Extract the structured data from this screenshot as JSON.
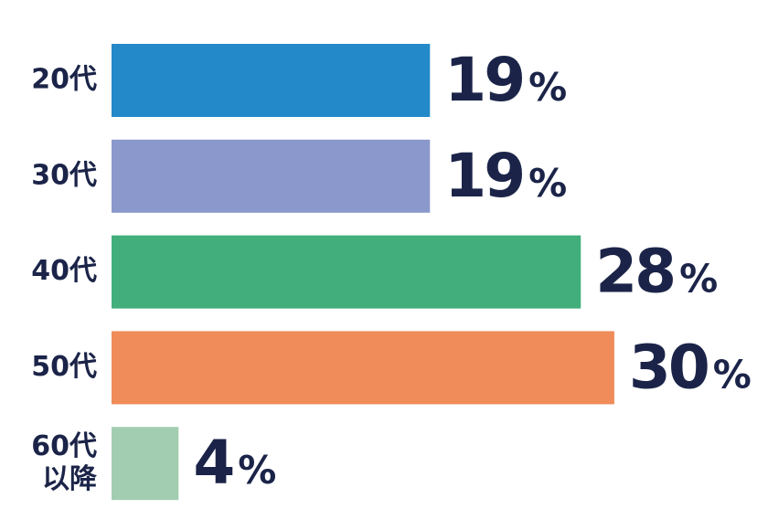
{
  "chart_data": {
    "type": "bar",
    "orientation": "horizontal",
    "categories": [
      "20代",
      "30代",
      "40代",
      "50代",
      "60代以降"
    ],
    "values": [
      19,
      19,
      28,
      30,
      4
    ],
    "value_labels": [
      "19%",
      "19%",
      "28%",
      "30%",
      "4%"
    ],
    "colors": [
      "#2389c8",
      "#8a98cc",
      "#41ae7c",
      "#ef8c5a",
      "#a3cdb0"
    ]
  }
}
